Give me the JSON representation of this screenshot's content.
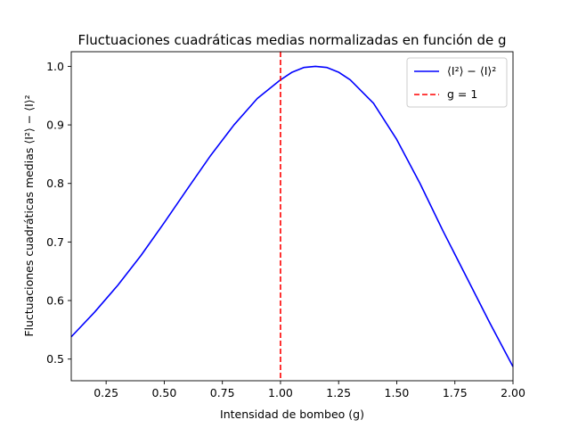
{
  "chart_data": {
    "type": "line",
    "title": "Fluctuaciones cuadráticas medias normalizadas en función de g",
    "xlabel": "Intensidad de bombeo (g)",
    "ylabel": "Fluctuaciones cuadráticas medias ⟨I²⟩ − ⟨I⟩²",
    "xlim": [
      0.1,
      2.0
    ],
    "ylim": [
      0.463,
      1.025
    ],
    "xticks": [
      0.25,
      0.5,
      0.75,
      1.0,
      1.25,
      1.5,
      1.75,
      2.0
    ],
    "xtick_labels": [
      "0.25",
      "0.50",
      "0.75",
      "1.00",
      "1.25",
      "1.50",
      "1.75",
      "2.00"
    ],
    "yticks": [
      0.5,
      0.6,
      0.7,
      0.8,
      0.9,
      1.0
    ],
    "ytick_labels": [
      "0.5",
      "0.6",
      "0.7",
      "0.8",
      "0.9",
      "1.0"
    ],
    "grid": false,
    "legend_position": "top-right",
    "series": [
      {
        "name": "⟨I²⟩ − ⟨I⟩²",
        "color": "#0000ff",
        "style": "solid",
        "x": [
          0.1,
          0.2,
          0.3,
          0.4,
          0.5,
          0.6,
          0.7,
          0.8,
          0.9,
          1.0,
          1.05,
          1.1,
          1.15,
          1.2,
          1.25,
          1.3,
          1.4,
          1.5,
          1.6,
          1.7,
          1.8,
          1.9,
          2.0
        ],
        "y": [
          0.538,
          0.58,
          0.626,
          0.677,
          0.733,
          0.791,
          0.848,
          0.9,
          0.945,
          0.977,
          0.99,
          0.998,
          1.0,
          0.998,
          0.99,
          0.977,
          0.937,
          0.875,
          0.8,
          0.718,
          0.64,
          0.562,
          0.487
        ]
      },
      {
        "name": "g = 1",
        "color": "#ff0000",
        "style": "dashed",
        "vline_x": 1.0
      }
    ]
  }
}
